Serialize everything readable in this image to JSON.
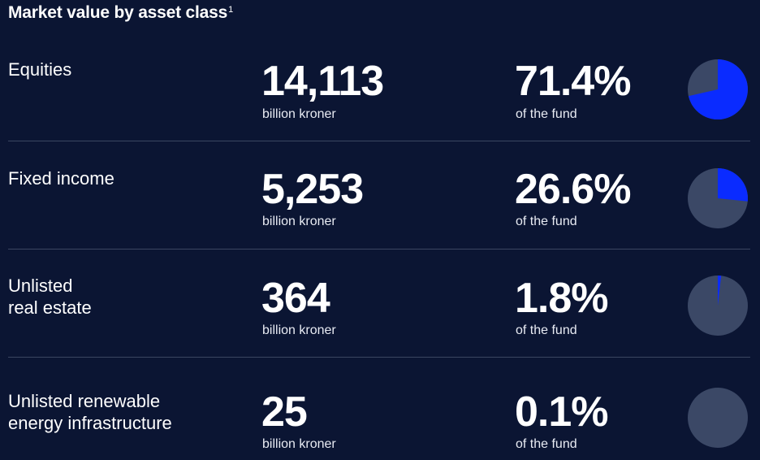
{
  "title": "Market value by asset class",
  "footnote_marker": "1",
  "colors": {
    "background": "#0b1533",
    "pie_base": "#3b4866",
    "pie_highlight": "#0a2bff",
    "divider": "#3b4661"
  },
  "chart_data": {
    "type": "pie",
    "title": "Market value by asset class",
    "rows": [
      {
        "label": "Equities",
        "value_text": "14,113",
        "value": 14113,
        "unit": "billion kroner",
        "percent_text": "71.4%",
        "percent": 71.4,
        "share_label": "of the fund"
      },
      {
        "label": "Fixed income",
        "value_text": "5,253",
        "value": 5253,
        "unit": "billion kroner",
        "percent_text": "26.6%",
        "percent": 26.6,
        "share_label": "of the fund"
      },
      {
        "label": "Unlisted real estate",
        "label_lines": [
          "Unlisted",
          "real estate"
        ],
        "value_text": "364",
        "value": 364,
        "unit": "billion kroner",
        "percent_text": "1.8%",
        "percent": 1.8,
        "share_label": "of the fund"
      },
      {
        "label": "Unlisted renewable energy infrastructure",
        "label_lines": [
          "Unlisted renewable",
          "energy infrastructure"
        ],
        "value_text": "25",
        "value": 25,
        "unit": "billion kroner",
        "percent_text": "0.1%",
        "percent": 0.1,
        "share_label": "of the fund"
      }
    ]
  }
}
